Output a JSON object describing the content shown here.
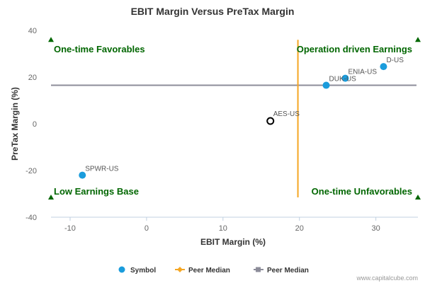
{
  "chart_data": {
    "type": "scatter",
    "title": "EBIT Margin Versus PreTax Margin",
    "xlabel": "EBIT Margin (%)",
    "ylabel": "PreTax Margin (%)",
    "xlim": [
      -12.5,
      35.5
    ],
    "ylim": [
      -40,
      40
    ],
    "xticks": [
      -10,
      0,
      10,
      20,
      30
    ],
    "yticks": [
      -40,
      -20,
      0,
      20,
      40
    ],
    "grid": false,
    "series": [
      {
        "name": "Symbol",
        "color": "#1a9cdc",
        "points": [
          {
            "label": "D-US",
            "x": 31.0,
            "y": 24.5
          },
          {
            "label": "ENIA-US",
            "x": 26.0,
            "y": 19.5
          },
          {
            "label": "DUK-US",
            "x": 23.5,
            "y": 16.5
          },
          {
            "label": "SPWR-US",
            "x": -8.4,
            "y": -22.0
          }
        ]
      }
    ],
    "highlight": {
      "label": "AES-US",
      "x": 16.2,
      "y": 1.2,
      "color": "#000000"
    },
    "peer_median_x": {
      "name": "Peer Median",
      "value": 19.8,
      "color": "#f5a623"
    },
    "peer_median_y": {
      "name": "Peer Median",
      "value": 16.5,
      "color": "#8c8c99"
    },
    "quadrants": {
      "top_left": "One-time Favorables",
      "top_right": "Operation driven Earnings",
      "bottom_left": "Low Earnings Base",
      "bottom_right": "One-time Unfavorables"
    },
    "quadrant_color": "#006600",
    "legend_position": "bottom-center",
    "legend": [
      "Symbol",
      "Peer Median",
      "Peer Median"
    ]
  },
  "credit": "www.capitalcube.com"
}
